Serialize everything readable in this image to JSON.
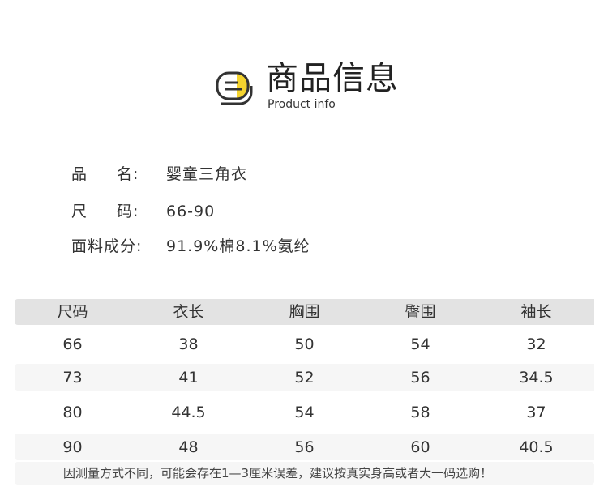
{
  "header": {
    "title": "商品信息",
    "subtitle": "Product info",
    "icon": "list-document-icon",
    "accent": "#f5d42e"
  },
  "info": [
    {
      "label_a": "品",
      "label_b": "名:",
      "value": "婴童三角衣"
    },
    {
      "label_a": "尺",
      "label_b": "码:",
      "value": "66-90"
    },
    {
      "label_a": "面料成分:",
      "label_b": "",
      "value": "91.9%棉8.1%氨纶"
    }
  ],
  "table": {
    "columns": [
      "尺码",
      "衣长",
      "胸围",
      "臀围",
      "袖长"
    ],
    "rows": [
      [
        "66",
        "38",
        "50",
        "54",
        "32"
      ],
      [
        "73",
        "41",
        "52",
        "56",
        "34.5"
      ],
      [
        "80",
        "44.5",
        "54",
        "58",
        "37"
      ],
      [
        "90",
        "48",
        "56",
        "60",
        "40.5"
      ]
    ]
  },
  "note": "因测量方式不同，可能会存在1—3厘米误差，建议按真实身高或者大一码选购！"
}
